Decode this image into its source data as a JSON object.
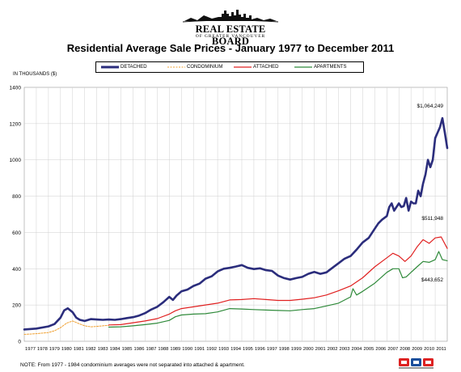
{
  "header": {
    "logo_text": "REAL ESTATE BOARD",
    "logo_subtext": "OF GREATER VANCOUVER",
    "title": "Residential Average Sale Prices  -  January 1977 to December 2011"
  },
  "footer": {
    "note": "NOTE:  From 1977 - 1984 condominium averages were not separated into attached & apartment.",
    "badge_icon": "mls-logo-icon"
  },
  "chart_data": {
    "type": "line",
    "ylabel": "IN THOUSANDS ($)",
    "xlabel": "",
    "ylim": [
      0,
      1400
    ],
    "yticks": [
      0,
      200,
      400,
      600,
      800,
      1000,
      1200,
      1400
    ],
    "xlim": [
      1977,
      2012
    ],
    "x_tick_labels": [
      "1977",
      "1978",
      "1979",
      "1980",
      "1981",
      "1982",
      "1983",
      "1984",
      "1985",
      "1986",
      "1987",
      "1988",
      "1989",
      "1990",
      "1991",
      "1992",
      "1993",
      "1994",
      "1995",
      "1996",
      "1997",
      "1998",
      "1999",
      "2000",
      "2001",
      "2002",
      "2003",
      "2004",
      "2005",
      "2006",
      "2007",
      "2008",
      "2009",
      "2010",
      "2011"
    ],
    "grid": true,
    "legend_position": "top",
    "series": [
      {
        "name": "DETACHED",
        "color": "#2b2d7c",
        "style": "solid-thick",
        "x": [
          1977,
          1978,
          1979,
          1979.5,
          1980,
          1980.3,
          1980.6,
          1981,
          1981.3,
          1981.6,
          1982,
          1982.5,
          1983,
          1983.5,
          1984,
          1984.5,
          1985,
          1985.5,
          1986,
          1986.5,
          1987,
          1987.5,
          1988,
          1988.5,
          1989,
          1989.3,
          1989.6,
          1990,
          1990.5,
          1991,
          1991.5,
          1992,
          1992.5,
          1993,
          1993.5,
          1994,
          1994.5,
          1995,
          1995.5,
          1996,
          1996.5,
          1997,
          1997.5,
          1998,
          1998.5,
          1999,
          1999.5,
          2000,
          2000.5,
          2001,
          2001.5,
          2002,
          2002.5,
          2003,
          2003.5,
          2004,
          2004.5,
          2005,
          2005.5,
          2006,
          2006.3,
          2006.6,
          2007,
          2007.2,
          2007.4,
          2007.6,
          2008,
          2008.2,
          2008.4,
          2008.6,
          2008.8,
          2009,
          2009.2,
          2009.4,
          2009.6,
          2009.8,
          2010,
          2010.2,
          2010.4,
          2010.6,
          2010.8,
          2011,
          2011.2,
          2011.4,
          2011.6,
          2011.8,
          2012
        ],
        "values": [
          65,
          70,
          82,
          95,
          130,
          170,
          182,
          160,
          130,
          118,
          112,
          122,
          120,
          118,
          120,
          118,
          122,
          128,
          133,
          142,
          155,
          175,
          190,
          215,
          245,
          228,
          252,
          275,
          285,
          305,
          318,
          345,
          358,
          385,
          400,
          405,
          412,
          420,
          405,
          398,
          402,
          392,
          388,
          362,
          348,
          340,
          348,
          355,
          372,
          382,
          372,
          380,
          405,
          430,
          455,
          470,
          505,
          545,
          570,
          620,
          650,
          670,
          690,
          740,
          760,
          720,
          760,
          740,
          745,
          790,
          720,
          770,
          760,
          760,
          830,
          800,
          870,
          920,
          1000,
          960,
          1000,
          1120,
          1150,
          1180,
          1230,
          1150,
          1065
        ],
        "end_label": "$1,064,249"
      },
      {
        "name": "CONDOMINIUM",
        "color": "#f0a030",
        "style": "dashed",
        "x": [
          1977,
          1978,
          1979,
          1979.5,
          1980,
          1980.5,
          1981,
          1981.5,
          1982,
          1982.5,
          1983,
          1983.5,
          1984
        ],
        "values": [
          38,
          42,
          48,
          58,
          75,
          100,
          112,
          98,
          85,
          80,
          82,
          85,
          88
        ]
      },
      {
        "name": "ATTACHED",
        "color": "#e02020",
        "style": "solid",
        "x": [
          1984,
          1985,
          1986,
          1987,
          1988,
          1989,
          1989.5,
          1990,
          1991,
          1992,
          1993,
          1994,
          1995,
          1996,
          1997,
          1998,
          1999,
          2000,
          2001,
          2002,
          2003,
          2004,
          2005,
          2006,
          2007,
          2007.5,
          2008,
          2008.5,
          2009,
          2009.5,
          2010,
          2010.5,
          2011,
          2011.5,
          2012
        ],
        "values": [
          90,
          92,
          102,
          112,
          125,
          150,
          168,
          180,
          190,
          200,
          210,
          228,
          230,
          235,
          230,
          225,
          225,
          232,
          240,
          255,
          278,
          305,
          350,
          410,
          460,
          485,
          470,
          440,
          470,
          520,
          560,
          540,
          570,
          575,
          512
        ],
        "end_label": "$511,948"
      },
      {
        "name": "APARTMENTS",
        "color": "#2f8a3a",
        "style": "solid",
        "x": [
          1984,
          1985,
          1986,
          1987,
          1988,
          1989,
          1989.5,
          1990,
          1991,
          1992,
          1993,
          1994,
          1995,
          1996,
          1997,
          1998,
          1999,
          2000,
          2001,
          2002,
          2003,
          2004,
          2004.2,
          2004.5,
          2005,
          2006,
          2007,
          2007.5,
          2008,
          2008.3,
          2008.6,
          2009,
          2009.5,
          2010,
          2010.5,
          2011,
          2011.3,
          2011.6,
          2012
        ],
        "values": [
          78,
          80,
          85,
          92,
          100,
          115,
          135,
          145,
          150,
          152,
          162,
          180,
          178,
          175,
          172,
          170,
          168,
          175,
          180,
          195,
          210,
          245,
          290,
          255,
          275,
          320,
          380,
          400,
          400,
          350,
          355,
          380,
          410,
          440,
          435,
          450,
          495,
          450,
          444
        ],
        "end_label": "$443,652"
      }
    ]
  }
}
